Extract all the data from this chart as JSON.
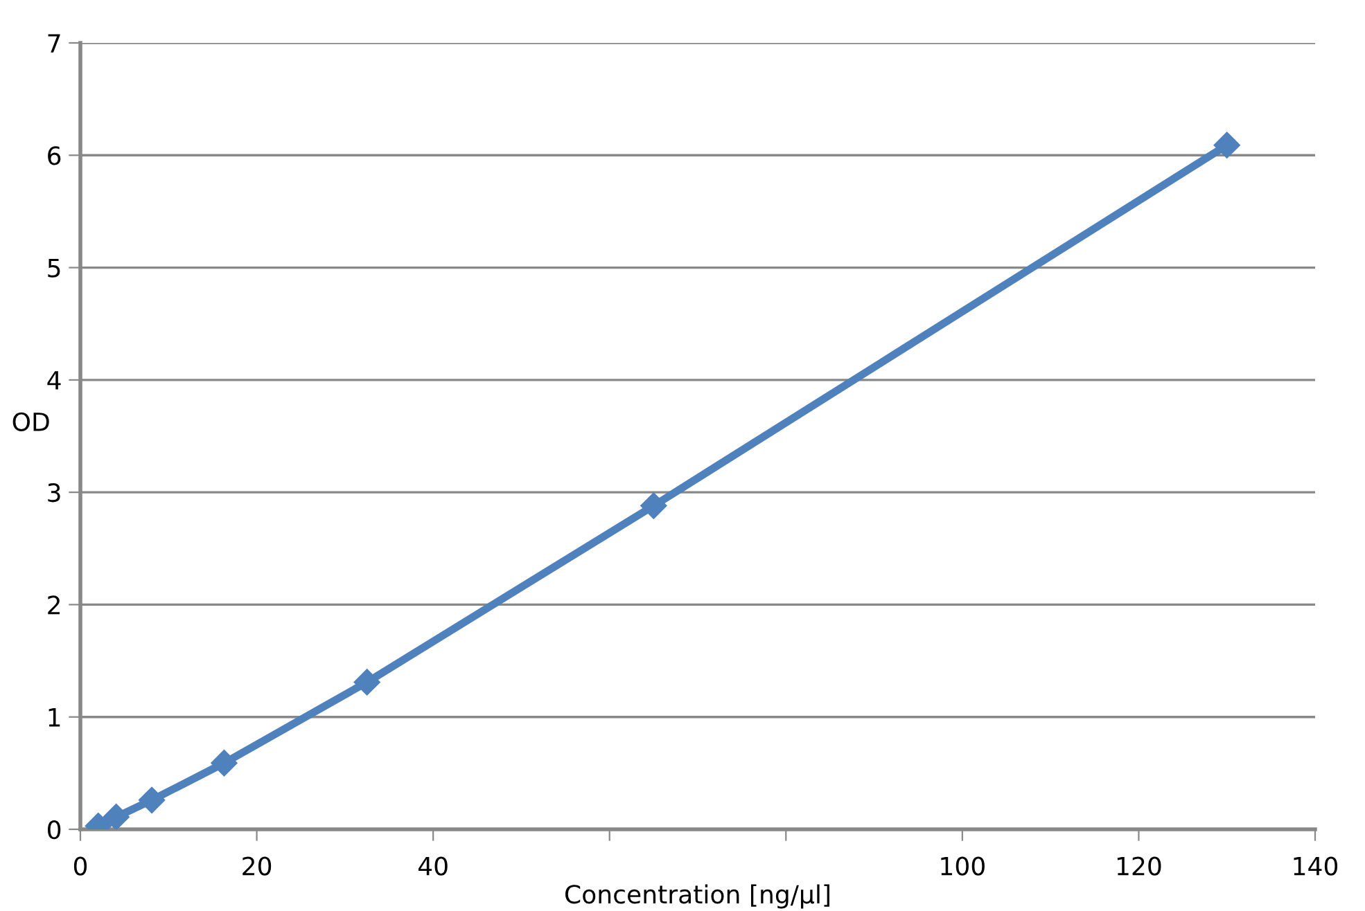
{
  "chart_data": {
    "type": "line",
    "xlabel": "Concentration [ng/µl]",
    "ylabel": "OD",
    "series": [
      {
        "color": "#4f81bd",
        "x": [
          2.03,
          4.06,
          8.1,
          16.3,
          32.5,
          65,
          130
        ],
        "values": [
          0.03,
          0.11,
          0.26,
          0.59,
          1.31,
          2.88,
          6.09
        ]
      }
    ],
    "xlim": [
      0,
      140
    ],
    "xticks": [
      0,
      20,
      40,
      {
        "value": 60,
        "label": null
      },
      {
        "value": 80,
        "label": null
      },
      100,
      120,
      140
    ],
    "ylim": [
      0,
      7
    ],
    "yticks": [
      0,
      1,
      2,
      3,
      4,
      5,
      6,
      7
    ],
    "grid": "y",
    "marker": "diamond",
    "line_style": "solid",
    "legend": false
  }
}
